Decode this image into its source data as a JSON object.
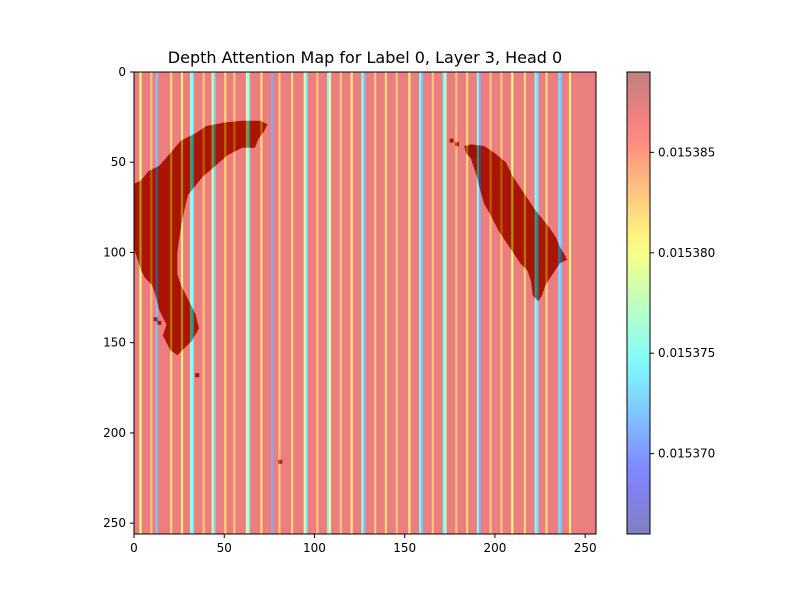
{
  "chart_data": {
    "type": "heatmap",
    "title": "Depth Attention Map for Label 0, Layer 3, Head 0",
    "xlabel": "",
    "ylabel": "",
    "xlim": [
      0,
      256
    ],
    "ylim": [
      256,
      0
    ],
    "x_ticks": [
      0,
      50,
      100,
      150,
      200,
      250
    ],
    "y_ticks": [
      0,
      50,
      100,
      150,
      200,
      250
    ],
    "colormap": "jet",
    "overlay_alpha": 0.5,
    "grid": false,
    "colorbar": {
      "min": 0.015366,
      "max": 0.015389,
      "ticks": [
        0.01537,
        0.015375,
        0.01538,
        0.015385
      ],
      "tick_labels": [
        "0.015370",
        "0.015375",
        "0.015380",
        "0.015385"
      ],
      "placement": "right"
    },
    "column_stripe_x": [
      3,
      9,
      12,
      20,
      26,
      31,
      32,
      38,
      43,
      44,
      50,
      55,
      62,
      63,
      70,
      76,
      80,
      87,
      94,
      95,
      101,
      107,
      108,
      114,
      120,
      126,
      127,
      133,
      139,
      145,
      152,
      158,
      159,
      165,
      171,
      172,
      178,
      184,
      190,
      191,
      197,
      203,
      209,
      216,
      222,
      223,
      228,
      235,
      236,
      241
    ],
    "column_stripe_values": [
      0.01538,
      0.015383,
      0.015372,
      0.015382,
      0.015381,
      0.015376,
      0.015374,
      0.015383,
      0.015379,
      0.015373,
      0.015382,
      0.015383,
      0.015379,
      0.015375,
      0.015382,
      0.015371,
      0.015383,
      0.015382,
      0.015379,
      0.015374,
      0.015383,
      0.015375,
      0.015379,
      0.015383,
      0.015381,
      0.015376,
      0.015372,
      0.015383,
      0.015382,
      0.015383,
      0.015381,
      0.015375,
      0.015372,
      0.015383,
      0.015374,
      0.015377,
      0.015383,
      0.015382,
      0.015376,
      0.015371,
      0.015383,
      0.015383,
      0.01538,
      0.015382,
      0.015375,
      0.015373,
      0.015382,
      0.015373,
      0.015372,
      0.015381
    ],
    "background_value": 0.015387,
    "base_image_regions": [
      {
        "color": "#7a2a08",
        "points": [
          [
            0,
            62
          ],
          [
            4,
            60
          ],
          [
            8,
            55
          ],
          [
            14,
            52
          ],
          [
            20,
            45
          ],
          [
            26,
            38
          ],
          [
            34,
            34
          ],
          [
            40,
            30
          ],
          [
            50,
            28
          ],
          [
            60,
            27
          ],
          [
            70,
            27
          ],
          [
            74,
            29
          ],
          [
            72,
            33
          ],
          [
            69,
            37
          ],
          [
            67,
            42
          ],
          [
            60,
            42
          ],
          [
            52,
            46
          ],
          [
            44,
            53
          ],
          [
            38,
            58
          ],
          [
            34,
            63
          ],
          [
            30,
            68
          ],
          [
            28,
            76
          ],
          [
            26,
            86
          ],
          [
            24,
            100
          ],
          [
            24,
            112
          ],
          [
            26,
            118
          ],
          [
            30,
            126
          ],
          [
            34,
            134
          ],
          [
            36,
            142
          ],
          [
            32,
            149
          ],
          [
            24,
            157
          ],
          [
            20,
            154
          ],
          [
            16,
            146
          ],
          [
            18,
            140
          ],
          [
            14,
            132
          ],
          [
            12,
            124
          ],
          [
            10,
            118
          ],
          [
            6,
            114
          ],
          [
            4,
            110
          ],
          [
            2,
            104
          ],
          [
            0,
            98
          ]
        ]
      },
      {
        "color": "#7a2a08",
        "points": [
          [
            186,
            40
          ],
          [
            194,
            41
          ],
          [
            200,
            45
          ],
          [
            206,
            50
          ],
          [
            210,
            58
          ],
          [
            214,
            64
          ],
          [
            218,
            70
          ],
          [
            222,
            76
          ],
          [
            226,
            81
          ],
          [
            230,
            86
          ],
          [
            234,
            92
          ],
          [
            236,
            97
          ],
          [
            238,
            100
          ],
          [
            240,
            104
          ],
          [
            236,
            106
          ],
          [
            232,
            112
          ],
          [
            228,
            118
          ],
          [
            226,
            124
          ],
          [
            224,
            127
          ],
          [
            221,
            124
          ],
          [
            220,
            116
          ],
          [
            218,
            110
          ],
          [
            214,
            106
          ],
          [
            210,
            100
          ],
          [
            206,
            94
          ],
          [
            202,
            88
          ],
          [
            198,
            80
          ],
          [
            194,
            73
          ],
          [
            192,
            66
          ],
          [
            190,
            58
          ],
          [
            188,
            52
          ],
          [
            186,
            46
          ]
        ]
      },
      {
        "color": "#5a2408",
        "points": [
          [
            183,
            41
          ],
          [
            188,
            40
          ],
          [
            191,
            46
          ],
          [
            187,
            48
          ],
          [
            184,
            45
          ]
        ]
      }
    ],
    "base_image_dots": [
      [
        176,
        38
      ],
      [
        179,
        40
      ],
      [
        35,
        168
      ],
      [
        81,
        216
      ],
      [
        14,
        139
      ],
      [
        12,
        137
      ],
      [
        29,
        146
      ]
    ]
  }
}
